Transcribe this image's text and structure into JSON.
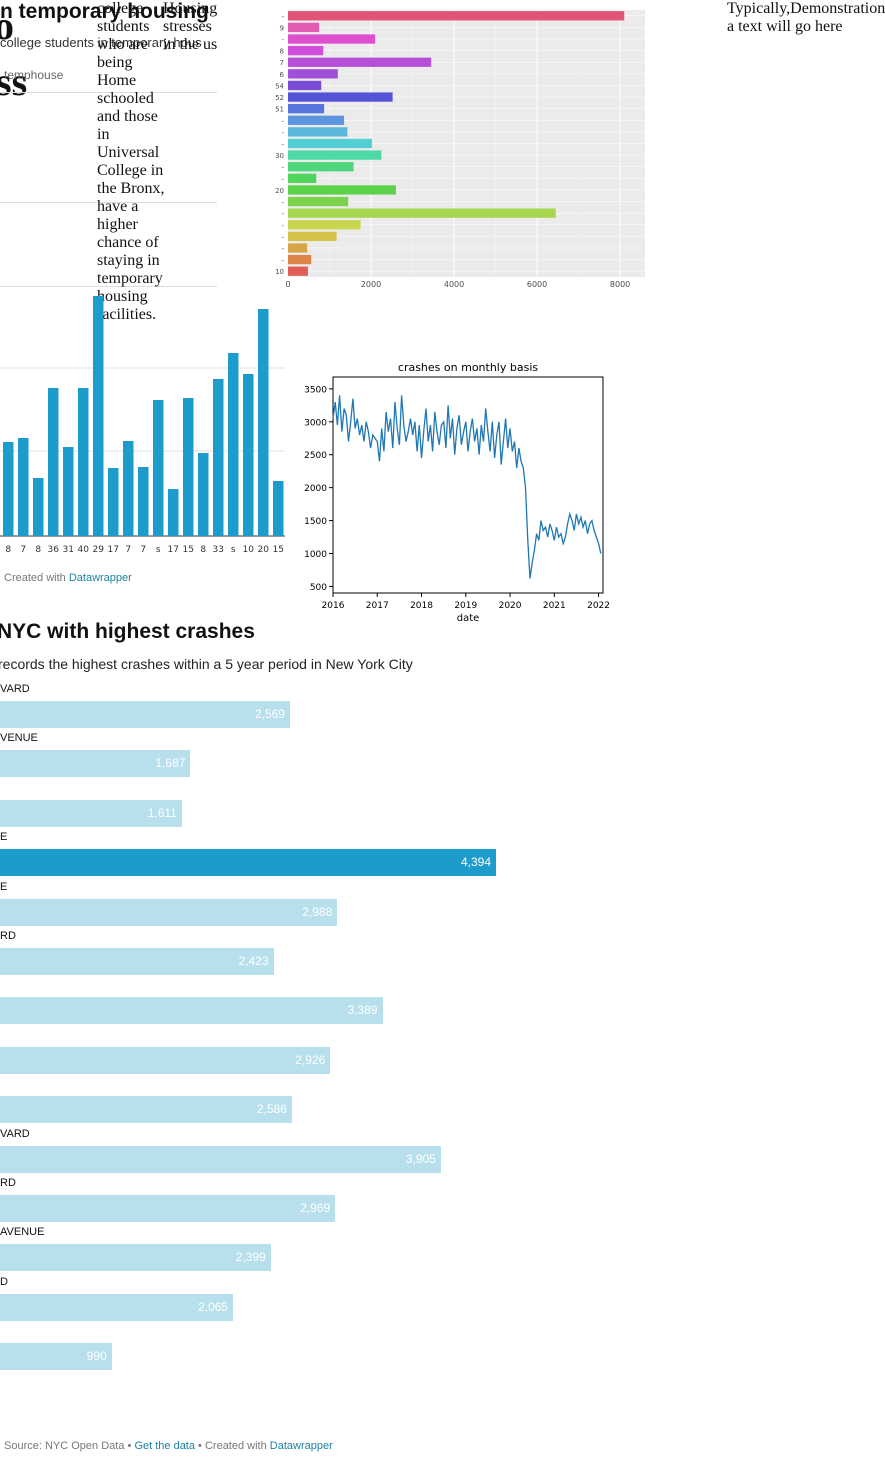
{
  "header": {
    "title_part": "n temporary housing",
    "subtitle_part": "college students in temporary hous",
    "glyph_o": "o",
    "glyph_ss": "ss",
    "legend_tag": "temphouse"
  },
  "text_col_1": "college students who are being Home schooled and those in Universal College in the Bronx, have a higher chance of staying in temporary housing facilities.",
  "text_col_2": "Housing stresses in the us",
  "text_col_3": "Typically,Demonstration a text will go here",
  "credit_small": {
    "prefix": "Created with",
    "link": "Datawrapper"
  },
  "chart_data": [
    {
      "type": "bar",
      "orientation": "horizontal",
      "x_ticks": [
        "0",
        "2000",
        "4000",
        "6000",
        "8000"
      ],
      "xlim": [
        0,
        8600
      ],
      "grid": true,
      "background": "#ebebeb",
      "categories": [
        "-",
        "9",
        "-",
        "8",
        "7",
        "6",
        "54",
        "52",
        "51",
        "-",
        "-",
        "-",
        "30",
        "-",
        "-",
        "20",
        "-",
        "-",
        "-",
        "-",
        "-",
        "-",
        "10"
      ],
      "values": [
        8100,
        750,
        2100,
        850,
        3450,
        1200,
        800,
        2520,
        870,
        1350,
        1430,
        2020,
        2250,
        1580,
        680,
        2600,
        1450,
        6450,
        1750,
        1170,
        460,
        560,
        480
      ],
      "colors": [
        "#e05577",
        "#e15ab4",
        "#dd4fcf",
        "#d04ed9",
        "#b64fd8",
        "#9f4fd9",
        "#7a4cd5",
        "#5553d5",
        "#5773dd",
        "#5c95dd",
        "#5bb8dc",
        "#51cfd4",
        "#4dd8a6",
        "#4fd67d",
        "#4fd55c",
        "#5cd24a",
        "#7bd34d",
        "#a6d74e",
        "#c7d64c",
        "#d5c349",
        "#d9a549",
        "#dd8549",
        "#df5f57"
      ]
    },
    {
      "type": "bar",
      "partial": true,
      "categories": [
        "8",
        "7",
        "8",
        "36",
        "31",
        "40",
        "29",
        "17",
        "7",
        "7",
        "s",
        "17",
        "15",
        "8",
        "33",
        "s",
        "10",
        "20",
        "15"
      ],
      "values": [
        94,
        98,
        58,
        148,
        89,
        148,
        240,
        68,
        95,
        69,
        136,
        47,
        138,
        83,
        157,
        183,
        162,
        227,
        55
      ],
      "ylim": [
        0,
        240
      ],
      "grid": true,
      "color": "#1d9ccc"
    },
    {
      "type": "line",
      "title": "crashes on monthly basis",
      "xlabel": "date",
      "ylabel": "",
      "x_ticks": [
        "2016",
        "2017",
        "2018",
        "2019",
        "2020",
        "2021",
        "2022"
      ],
      "y_ticks": [
        500,
        1000,
        1500,
        2000,
        2500,
        3000,
        3500
      ],
      "xlim": [
        2016.0,
        2022.1
      ],
      "ylim": [
        400,
        3680
      ],
      "color": "#1f77b4",
      "x": [
        2016.0,
        2016.05,
        2016.1,
        2016.15,
        2016.2,
        2016.25,
        2016.3,
        2016.35,
        2016.4,
        2016.45,
        2016.5,
        2016.55,
        2016.6,
        2016.65,
        2016.7,
        2016.75,
        2016.8,
        2016.85,
        2016.9,
        2016.95,
        2017.0,
        2017.05,
        2017.1,
        2017.15,
        2017.2,
        2017.25,
        2017.3,
        2017.35,
        2017.4,
        2017.45,
        2017.5,
        2017.55,
        2017.6,
        2017.65,
        2017.7,
        2017.75,
        2017.8,
        2017.85,
        2017.9,
        2017.95,
        2018.0,
        2018.05,
        2018.1,
        2018.15,
        2018.2,
        2018.25,
        2018.3,
        2018.35,
        2018.4,
        2018.45,
        2018.5,
        2018.55,
        2018.6,
        2018.65,
        2018.7,
        2018.75,
        2018.8,
        2018.85,
        2018.9,
        2018.95,
        2019.0,
        2019.05,
        2019.1,
        2019.15,
        2019.2,
        2019.25,
        2019.3,
        2019.35,
        2019.4,
        2019.45,
        2019.5,
        2019.55,
        2019.6,
        2019.65,
        2019.7,
        2019.75,
        2019.8,
        2019.85,
        2019.9,
        2019.95,
        2020.0,
        2020.05,
        2020.1,
        2020.15,
        2020.2,
        2020.25,
        2020.3,
        2020.35,
        2020.4,
        2020.45,
        2020.5,
        2020.55,
        2020.6,
        2020.65,
        2020.7,
        2020.75,
        2020.8,
        2020.85,
        2020.9,
        2020.95,
        2021.0,
        2021.05,
        2021.1,
        2021.15,
        2021.2,
        2021.25,
        2021.3,
        2021.35,
        2021.4,
        2021.45,
        2021.5,
        2021.55,
        2021.6,
        2021.65,
        2021.7,
        2021.75,
        2021.8,
        2021.85,
        2021.9,
        2021.95,
        2022.0,
        2022.05
      ],
      "y": [
        3050,
        3300,
        2950,
        3400,
        2850,
        3200,
        3100,
        2700,
        3000,
        3350,
        2900,
        3050,
        2800,
        2950,
        2700,
        3000,
        2850,
        2600,
        2800,
        2750,
        2700,
        2400,
        2900,
        2550,
        3150,
        2850,
        3050,
        2600,
        3300,
        2900,
        2650,
        3400,
        2950,
        2700,
        2850,
        3050,
        2800,
        3000,
        2550,
        2950,
        2450,
        2850,
        3200,
        2700,
        2950,
        2550,
        3150,
        2850,
        2650,
        2950,
        3000,
        2600,
        3250,
        2750,
        3050,
        2500,
        2900,
        3100,
        2650,
        2850,
        3000,
        2550,
        2850,
        3050,
        2700,
        2900,
        2500,
        2950,
        2700,
        3200,
        2850,
        2550,
        3000,
        2450,
        2800,
        3000,
        2350,
        2700,
        3050,
        2600,
        2900,
        2550,
        2700,
        2300,
        2600,
        2400,
        2300,
        2000,
        1200,
        620,
        860,
        1050,
        1300,
        1200,
        1500,
        1350,
        1400,
        1250,
        1450,
        1350,
        1200,
        1400,
        1250,
        1300,
        1150,
        1250,
        1450,
        1600,
        1500,
        1350,
        1600,
        1450,
        1550,
        1400,
        1500,
        1300,
        1450,
        1500,
        1350,
        1250,
        1150,
        1000
      ]
    },
    {
      "type": "bar",
      "orientation": "horizontal",
      "partial": true,
      "title": "NYC with highest crashes",
      "subtitle": "records the highest crashes within a 5 year period in New York City",
      "categories": [
        "VARD",
        "VENUE",
        "",
        "E",
        "E",
        "RD",
        "",
        "",
        "",
        "VARD",
        "RD",
        "AVENUE",
        "D",
        ""
      ],
      "values": [
        2569,
        1687,
        1611,
        4394,
        2988,
        2423,
        3389,
        2926,
        2586,
        3905,
        2969,
        2399,
        2065,
        990
      ],
      "value_labels": [
        "2,569",
        "1,687",
        "1,611",
        "4,394",
        "2,988",
        "2,423",
        "3,389",
        "2,926",
        "2,586",
        "3,905",
        "2,969",
        "2,399",
        "2,065",
        "990"
      ],
      "highlight_index": 3,
      "colors": {
        "base": "#b8e0ec",
        "highlight": "#1d9ccc"
      }
    }
  ],
  "footer": {
    "source": "Source: NYC Open Data",
    "get_data": "Get the data",
    "created": "Created with",
    "link": "Datawrapper",
    "sep": "•"
  }
}
